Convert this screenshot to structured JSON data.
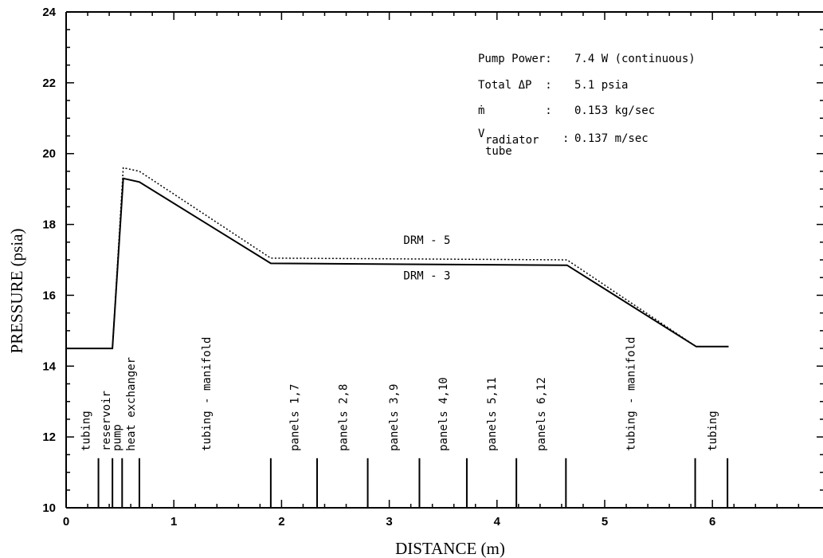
{
  "chart_data": {
    "type": "line",
    "xlabel": "DISTANCE (m)",
    "ylabel": "PRESSURE (psia)",
    "xlim": [
      0,
      7
    ],
    "ylim": [
      10,
      24
    ],
    "grid": false,
    "x_tick_labels": [
      "0",
      "1",
      "2",
      "3",
      "4",
      "5",
      "6"
    ],
    "y_tick_labels": [
      "10",
      "12",
      "14",
      "16",
      "18",
      "20",
      "22",
      "24"
    ],
    "series": [
      {
        "name": "DRM - 5",
        "style": "dotted",
        "x": [
          0,
          0.43,
          0.53,
          0.68,
          1.9,
          4.65,
          5.85,
          6.15
        ],
        "y": [
          14.5,
          14.5,
          19.6,
          19.5,
          17.05,
          17.0,
          14.55,
          14.55
        ]
      },
      {
        "name": "DRM - 3",
        "style": "solid",
        "x": [
          0,
          0.43,
          0.53,
          0.68,
          1.9,
          4.65,
          5.85,
          6.15
        ],
        "y": [
          14.5,
          14.5,
          19.3,
          19.2,
          16.9,
          16.85,
          14.55,
          14.55
        ]
      }
    ],
    "series_labels": [
      {
        "text": "DRM - 5",
        "x": 3.35,
        "y": 17.45
      },
      {
        "text": "DRM - 3",
        "x": 3.35,
        "y": 16.45
      }
    ],
    "info_box": {
      "rows": [
        {
          "label": "Pump Power:",
          "value": "7.4 W (continuous)"
        },
        {
          "label": "Total ΔP  :",
          "value": "5.1 psia"
        },
        {
          "label": "ṁ         :",
          "value": "0.153 kg/sec"
        },
        {
          "label": "V",
          "sub": "radiator",
          "sub2": "tube",
          "colon": ":",
          "value": "0.137 m/sec"
        }
      ]
    },
    "segment_dividers": [
      0.3,
      0.43,
      0.52,
      0.68,
      1.9,
      2.33,
      2.8,
      3.28,
      3.72,
      4.18,
      4.64,
      5.84,
      6.14
    ],
    "segment_labels": [
      {
        "text": "tubing",
        "x": 0.18
      },
      {
        "text": "reservoir",
        "x": 0.37
      },
      {
        "text": "pump",
        "x": 0.47
      },
      {
        "text": "heat exchanger",
        "x": 0.6
      },
      {
        "text": "tubing - manifold",
        "x": 1.3
      },
      {
        "text": "panels 1,7",
        "x": 2.12
      },
      {
        "text": "panels 2,8",
        "x": 2.57
      },
      {
        "text": "panels 3,9",
        "x": 3.04
      },
      {
        "text": "panels 4,10",
        "x": 3.5
      },
      {
        "text": "panels 5,11",
        "x": 3.95
      },
      {
        "text": "panels 6,12",
        "x": 4.41
      },
      {
        "text": "tubing - manifold",
        "x": 5.24
      },
      {
        "text": "tubing",
        "x": 6.0
      }
    ]
  }
}
